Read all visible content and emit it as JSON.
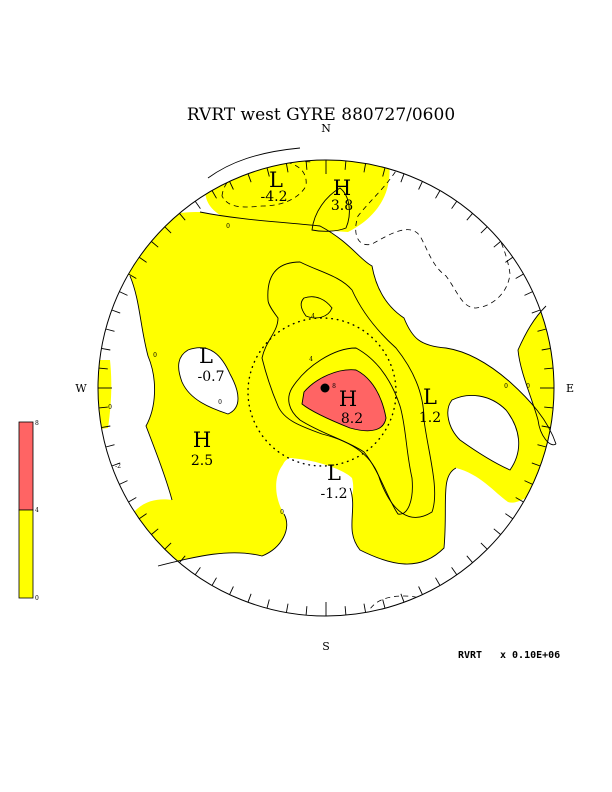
{
  "title": "RVRT west GYRE 880727/0600",
  "compass": {
    "n": "N",
    "s": "S",
    "e": "E",
    "w": "W"
  },
  "colors": {
    "high_fill": "#ff6464",
    "mid_fill": "#ffff00",
    "background": "#ffffff",
    "line": "#000000"
  },
  "centers": [
    {
      "type": "L",
      "value": "-4.2"
    },
    {
      "type": "H",
      "value": "3.8"
    },
    {
      "type": "L",
      "value": "-0.7"
    },
    {
      "type": "H",
      "value": "8.2"
    },
    {
      "type": "L",
      "value": "1.2"
    },
    {
      "type": "H",
      "value": "2.5"
    },
    {
      "type": "L",
      "value": "-1.2"
    }
  ],
  "contour_labels": [
    "0",
    "0",
    "0",
    "0",
    "0",
    "0",
    "0",
    "4",
    "4",
    "-2",
    "8"
  ],
  "legend": {
    "levels": [
      "8",
      "4",
      "0"
    ]
  },
  "footer": {
    "label": "RVRT",
    "scale": "x  0.10E+06"
  }
}
